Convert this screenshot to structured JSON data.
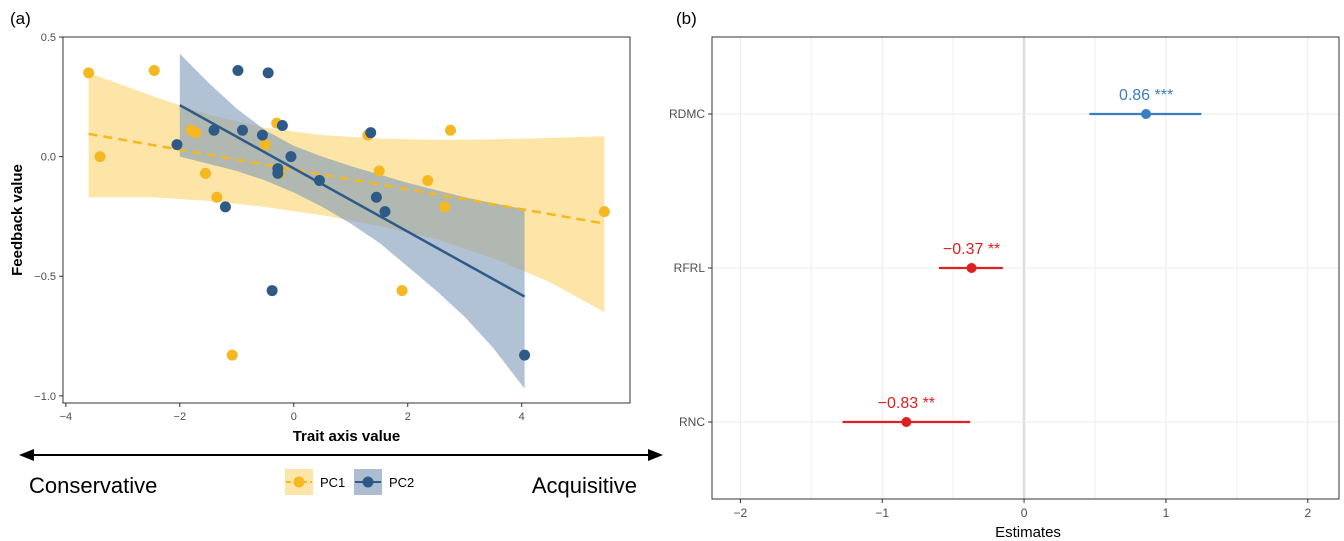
{
  "chart_data": [
    {
      "panel_label": "(a)",
      "type": "scatter",
      "xlabel": "Trait axis value",
      "ylabel": "Feedback value",
      "xlim": [
        -4.05,
        5.9
      ],
      "ylim": [
        -1.03,
        0.5
      ],
      "xticks": [
        -4,
        -2,
        0,
        2,
        4
      ],
      "yticks": [
        -1.0,
        -0.5,
        0.0,
        0.5
      ],
      "ytick_labels": [
        "−1.0",
        "−0.5",
        "0.0",
        "0.5"
      ],
      "xtick_labels": [
        "−4",
        "−2",
        "0",
        "2",
        "4"
      ],
      "grid": false,
      "legend_position": "bottom",
      "series": [
        {
          "name": "PC1",
          "color": "#F5B820",
          "band_color": "#F9CF5C",
          "line_style": "dashed",
          "fit": {
            "x": [
              -3.6,
              5.45
            ],
            "y": [
              0.095,
              -0.28
            ]
          },
          "ci_upper": [
            [
              -3.6,
              0.35
            ],
            [
              -2.5,
              0.255
            ],
            [
              -1.5,
              0.175
            ],
            [
              -0.5,
              0.12
            ],
            [
              0.5,
              0.09
            ],
            [
              1.5,
              0.075
            ],
            [
              2.5,
              0.07
            ],
            [
              3.5,
              0.072
            ],
            [
              4.5,
              0.078
            ],
            [
              5.45,
              0.085
            ]
          ],
          "ci_lower": [
            [
              -3.6,
              -0.17
            ],
            [
              -2.5,
              -0.17
            ],
            [
              -1.5,
              -0.185
            ],
            [
              -0.5,
              -0.21
            ],
            [
              0.5,
              -0.245
            ],
            [
              1.5,
              -0.29
            ],
            [
              2.5,
              -0.345
            ],
            [
              3.5,
              -0.425
            ],
            [
              4.5,
              -0.525
            ],
            [
              5.45,
              -0.65
            ]
          ],
          "points": [
            [
              -3.6,
              0.35
            ],
            [
              -3.4,
              0.0
            ],
            [
              -2.45,
              0.36
            ],
            [
              -1.8,
              0.11
            ],
            [
              -1.72,
              0.1
            ],
            [
              -1.55,
              -0.07
            ],
            [
              -1.35,
              -0.17
            ],
            [
              -1.08,
              -0.83
            ],
            [
              -0.5,
              0.05
            ],
            [
              -0.3,
              0.14
            ],
            [
              -0.25,
              -0.07
            ],
            [
              1.3,
              0.09
            ],
            [
              1.5,
              -0.06
            ],
            [
              1.9,
              -0.56
            ],
            [
              2.35,
              -0.1
            ],
            [
              2.65,
              -0.21
            ],
            [
              2.75,
              0.11
            ],
            [
              5.45,
              -0.23
            ]
          ]
        },
        {
          "name": "PC2",
          "color": "#2E5A87",
          "band_color": "#7D9AB9",
          "line_style": "solid",
          "fit": {
            "x": [
              -2.0,
              4.05
            ],
            "y": [
              0.215,
              -0.585
            ]
          },
          "ci_upper": [
            [
              -2.0,
              0.43
            ],
            [
              -1.5,
              0.31
            ],
            [
              -1.0,
              0.2
            ],
            [
              -0.5,
              0.11
            ],
            [
              0.0,
              0.045
            ],
            [
              0.5,
              0.0
            ],
            [
              1.0,
              -0.04
            ],
            [
              1.5,
              -0.075
            ],
            [
              2.0,
              -0.11
            ],
            [
              2.5,
              -0.14
            ],
            [
              3.0,
              -0.17
            ],
            [
              3.5,
              -0.195
            ],
            [
              4.05,
              -0.22
            ]
          ],
          "ci_lower": [
            [
              -2.0,
              0.0
            ],
            [
              -1.5,
              -0.03
            ],
            [
              -1.0,
              -0.06
            ],
            [
              -0.5,
              -0.1
            ],
            [
              0.0,
              -0.15
            ],
            [
              0.5,
              -0.21
            ],
            [
              1.0,
              -0.28
            ],
            [
              1.5,
              -0.36
            ],
            [
              2.0,
              -0.46
            ],
            [
              2.5,
              -0.56
            ],
            [
              3.0,
              -0.67
            ],
            [
              3.5,
              -0.8
            ],
            [
              4.05,
              -0.97
            ]
          ],
          "points": [
            [
              -2.05,
              0.05
            ],
            [
              -1.4,
              0.11
            ],
            [
              -1.2,
              -0.21
            ],
            [
              -0.98,
              0.36
            ],
            [
              -0.9,
              0.11
            ],
            [
              -0.55,
              0.09
            ],
            [
              -0.45,
              0.35
            ],
            [
              -0.38,
              -0.56
            ],
            [
              -0.28,
              -0.05
            ],
            [
              -0.28,
              -0.07
            ],
            [
              -0.2,
              0.13
            ],
            [
              -0.05,
              0.0
            ],
            [
              0.45,
              -0.1
            ],
            [
              1.35,
              0.1
            ],
            [
              1.45,
              -0.17
            ],
            [
              1.6,
              -0.23
            ],
            [
              4.05,
              -0.83
            ]
          ]
        }
      ],
      "axis_annotation": {
        "left": "Conservative",
        "right": "Acquisitive"
      }
    },
    {
      "panel_label": "(b)",
      "type": "forest",
      "xlabel": "Estimates",
      "xlim": [
        -2.2,
        2.22
      ],
      "xticks": [
        -2,
        -1,
        0,
        1,
        2
      ],
      "xtick_labels": [
        "−2",
        "−1",
        "0",
        "1",
        "2"
      ],
      "grid": true,
      "rows": [
        {
          "label": "RDMC",
          "estimate": 0.86,
          "ci": [
            0.46,
            1.25
          ],
          "annotation": "0.86 ***",
          "color": "#3A7EC1"
        },
        {
          "label": "RFRL",
          "estimate": -0.37,
          "ci": [
            -0.6,
            -0.15
          ],
          "annotation": "−0.37 **",
          "color": "#DD2020"
        },
        {
          "label": "RNC",
          "estimate": -0.83,
          "ci": [
            -1.28,
            -0.38
          ],
          "annotation": "−0.83 **",
          "color": "#DD2020"
        }
      ]
    }
  ]
}
